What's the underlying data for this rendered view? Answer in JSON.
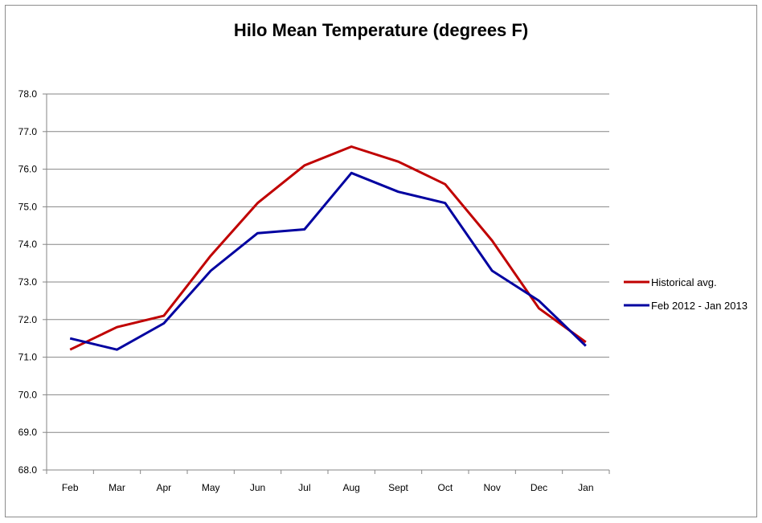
{
  "chart_data": {
    "type": "line",
    "title": "Hilo Mean Temperature (degrees F)",
    "xlabel": "",
    "ylabel": "",
    "categories": [
      "Feb",
      "Mar",
      "Apr",
      "May",
      "Jun",
      "Jul",
      "Aug",
      "Sept",
      "Oct",
      "Nov",
      "Dec",
      "Jan"
    ],
    "ylim": [
      68.0,
      78.0
    ],
    "ytick_labels": [
      "68.0",
      "69.0",
      "70.0",
      "71.0",
      "72.0",
      "73.0",
      "74.0",
      "75.0",
      "76.0",
      "77.0",
      "78.0"
    ],
    "grid": true,
    "legend_position": "right",
    "series": [
      {
        "name": "Historical avg.",
        "color": "#c00000",
        "values": [
          71.2,
          71.8,
          72.1,
          73.7,
          75.1,
          76.1,
          76.6,
          76.2,
          75.6,
          74.1,
          72.3,
          71.4
        ]
      },
      {
        "name": "Feb 2012 - Jan 2013",
        "color": "#0000a0",
        "values": [
          71.5,
          71.2,
          71.9,
          73.3,
          74.3,
          74.4,
          75.9,
          75.4,
          75.1,
          73.3,
          72.5,
          71.3
        ]
      }
    ]
  }
}
